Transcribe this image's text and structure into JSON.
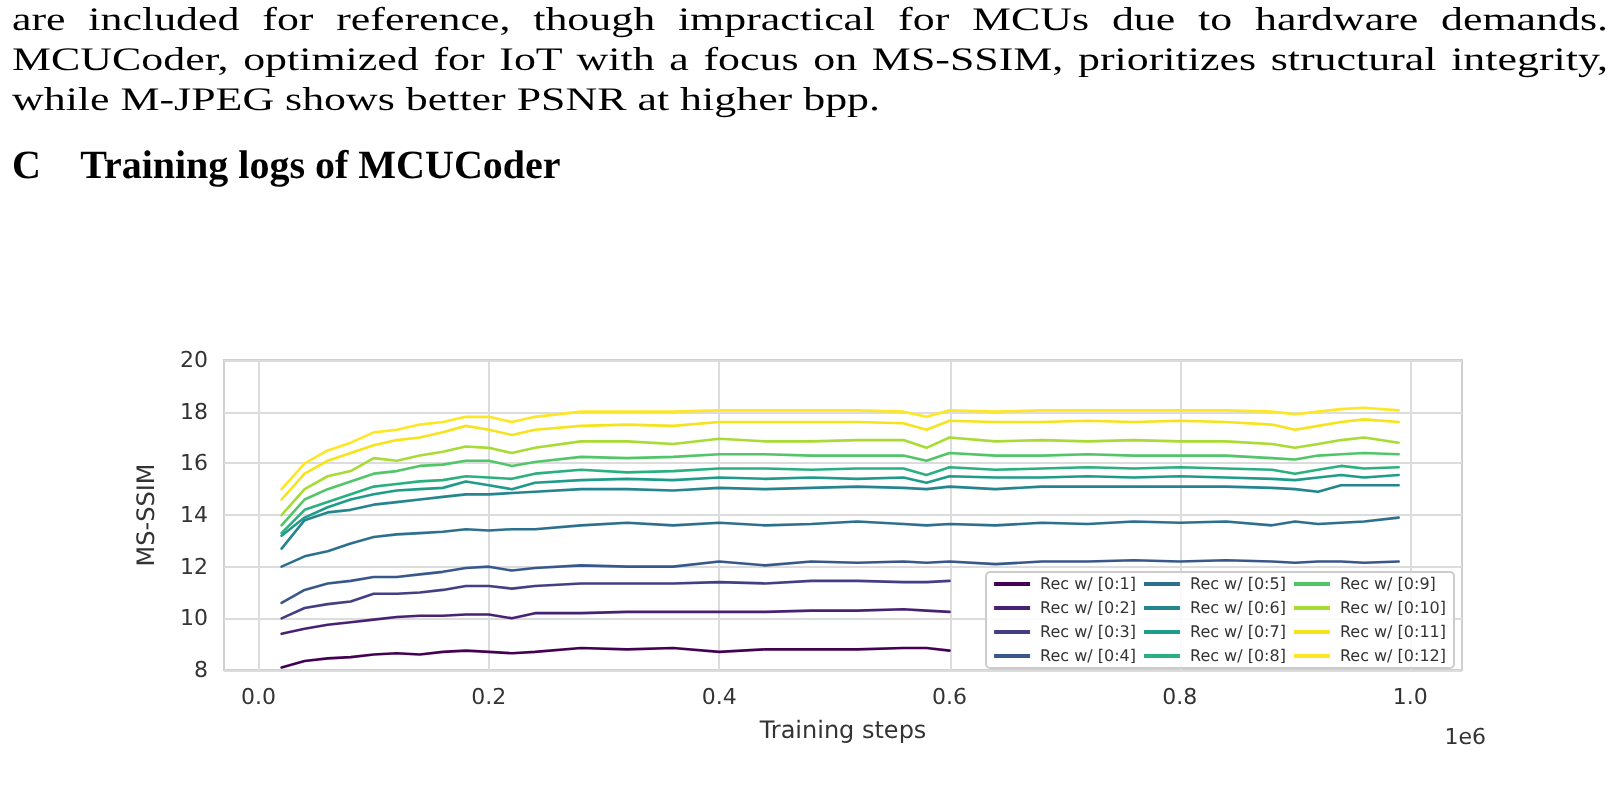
{
  "chart_data": {
    "type": "line",
    "title": "C    Training logs of MCUCoder",
    "annotations": [
      "are included for reference, though impractical for MCUs due to hardware demands. MCUCoder, optimized for IoT with a focus on MS-SSIM, prioritizes structural integrity, while M-JPEG shows better PSNR at higher bpp.",
      "1e6"
    ],
    "xlabel": "Training steps",
    "ylabel": "MS-SSIM",
    "x": [
      0.02,
      0.04,
      0.06,
      0.08,
      0.1,
      0.12,
      0.14,
      0.16,
      0.18,
      0.2,
      0.22,
      0.24,
      0.28,
      0.32,
      0.36,
      0.4,
      0.44,
      0.48,
      0.52,
      0.56,
      0.58,
      0.6,
      0.64,
      0.68,
      0.72,
      0.76,
      0.8,
      0.84,
      0.88,
      0.9,
      0.92,
      0.94,
      0.96,
      0.99
    ],
    "xlim": [
      -0.03,
      1.045
    ],
    "ylim": [
      8,
      20
    ],
    "xticks": [
      {
        "value": 0,
        "label": "0.0"
      },
      0.2,
      0.4,
      0.6,
      0.8,
      {
        "value": 1,
        "label": "1.0"
      }
    ],
    "yticks": [
      8,
      10,
      12,
      14,
      16,
      18,
      20
    ],
    "grid": true,
    "legend": "bottom right",
    "marker": "none",
    "line_style": "solid",
    "series": [
      {
        "name": "Rec w/ [0:1]",
        "color": "#440154",
        "values": [
          8.1,
          8.35,
          8.45,
          8.5,
          8.6,
          8.65,
          8.6,
          8.7,
          8.75,
          8.7,
          8.65,
          8.7,
          8.85,
          8.8,
          8.85,
          8.7,
          8.8,
          8.8,
          8.8,
          8.85,
          8.85,
          8.75,
          null,
          null,
          null,
          null,
          null,
          null,
          null,
          null,
          null,
          null,
          null,
          null
        ]
      },
      {
        "name": "Rec w/ [0:2]",
        "color": "#482173",
        "values": [
          9.4,
          9.6,
          9.75,
          9.85,
          9.95,
          10.05,
          10.1,
          10.1,
          10.15,
          10.15,
          10.0,
          10.2,
          10.2,
          10.25,
          10.25,
          10.25,
          10.25,
          10.3,
          10.3,
          10.35,
          10.3,
          10.25,
          null,
          null,
          null,
          null,
          null,
          null,
          null,
          null,
          null,
          null,
          null,
          null
        ]
      },
      {
        "name": "Rec w/ [0:3]",
        "color": "#433e85",
        "values": [
          10.0,
          10.4,
          10.55,
          10.65,
          10.95,
          10.95,
          11.0,
          11.1,
          11.25,
          11.25,
          11.15,
          11.25,
          11.35,
          11.35,
          11.35,
          11.4,
          11.35,
          11.45,
          11.45,
          11.4,
          11.4,
          11.45,
          null,
          null,
          null,
          null,
          null,
          null,
          null,
          null,
          null,
          null,
          null,
          null
        ]
      },
      {
        "name": "Rec w/ [0:4]",
        "color": "#38588c",
        "values": [
          10.6,
          11.1,
          11.35,
          11.45,
          11.6,
          11.6,
          11.7,
          11.8,
          11.95,
          12.0,
          11.85,
          11.95,
          12.05,
          12.0,
          12.0,
          12.2,
          12.05,
          12.2,
          12.15,
          12.2,
          12.15,
          12.2,
          12.1,
          12.2,
          12.2,
          12.25,
          12.2,
          12.25,
          12.2,
          12.15,
          12.2,
          12.2,
          12.15,
          12.2
        ]
      },
      {
        "name": "Rec w/ [0:5]",
        "color": "#2d708e",
        "values": [
          12.0,
          12.4,
          12.6,
          12.9,
          13.15,
          13.25,
          13.3,
          13.35,
          13.45,
          13.4,
          13.45,
          13.45,
          13.6,
          13.7,
          13.6,
          13.7,
          13.6,
          13.65,
          13.75,
          13.65,
          13.6,
          13.65,
          13.6,
          13.7,
          13.65,
          13.75,
          13.7,
          13.75,
          13.6,
          13.75,
          13.65,
          13.7,
          13.75,
          13.9
        ]
      },
      {
        "name": "Rec w/ [0:6]",
        "color": "#25858e",
        "values": [
          12.7,
          13.8,
          14.1,
          14.2,
          14.4,
          14.5,
          14.6,
          14.7,
          14.8,
          14.8,
          14.85,
          14.9,
          15.0,
          15.0,
          14.95,
          15.05,
          15.0,
          15.05,
          15.1,
          15.05,
          15.0,
          15.1,
          15.0,
          15.1,
          15.1,
          15.1,
          15.1,
          15.1,
          15.05,
          15.0,
          14.9,
          15.15,
          15.15,
          15.15
        ]
      },
      {
        "name": "Rec w/ [0:7]",
        "color": "#1e9b8a",
        "values": [
          13.2,
          13.9,
          14.3,
          14.6,
          14.8,
          14.95,
          15.0,
          15.05,
          15.3,
          15.15,
          15.0,
          15.25,
          15.35,
          15.4,
          15.35,
          15.45,
          15.4,
          15.45,
          15.4,
          15.45,
          15.25,
          15.5,
          15.45,
          15.45,
          15.5,
          15.45,
          15.5,
          15.45,
          15.4,
          15.35,
          15.45,
          15.55,
          15.45,
          15.55
        ]
      },
      {
        "name": "Rec w/ [0:8]",
        "color": "#2ab07f",
        "values": [
          13.3,
          14.2,
          14.5,
          14.8,
          15.1,
          15.2,
          15.3,
          15.35,
          15.5,
          15.45,
          15.4,
          15.6,
          15.75,
          15.65,
          15.7,
          15.8,
          15.8,
          15.75,
          15.8,
          15.8,
          15.55,
          15.85,
          15.75,
          15.8,
          15.85,
          15.8,
          15.85,
          15.8,
          15.75,
          15.6,
          15.75,
          15.9,
          15.8,
          15.85
        ]
      },
      {
        "name": "Rec w/ [0:9]",
        "color": "#52c569",
        "values": [
          13.6,
          14.6,
          15.0,
          15.3,
          15.6,
          15.7,
          15.9,
          15.95,
          16.1,
          16.1,
          15.9,
          16.05,
          16.25,
          16.2,
          16.25,
          16.35,
          16.35,
          16.3,
          16.3,
          16.3,
          16.1,
          16.4,
          16.3,
          16.3,
          16.35,
          16.3,
          16.3,
          16.3,
          16.2,
          16.15,
          16.3,
          16.35,
          16.4,
          16.35
        ]
      },
      {
        "name": "Rec w/ [0:10]",
        "color": "#a8db34",
        "values": [
          14.0,
          15.0,
          15.5,
          15.7,
          16.2,
          16.1,
          16.3,
          16.45,
          16.65,
          16.6,
          16.4,
          16.6,
          16.85,
          16.85,
          16.75,
          16.95,
          16.85,
          16.85,
          16.9,
          16.9,
          16.6,
          17.0,
          16.85,
          16.9,
          16.85,
          16.9,
          16.85,
          16.85,
          16.75,
          16.6,
          16.75,
          16.9,
          17.0,
          16.8
        ]
      },
      {
        "name": "Rec w/ [0:11]",
        "color": "#f5e31c",
        "values": [
          14.6,
          15.6,
          16.1,
          16.4,
          16.7,
          16.9,
          17.0,
          17.2,
          17.45,
          17.3,
          17.1,
          17.3,
          17.45,
          17.5,
          17.45,
          17.6,
          17.6,
          17.6,
          17.6,
          17.55,
          17.3,
          17.65,
          17.6,
          17.6,
          17.65,
          17.6,
          17.65,
          17.6,
          17.5,
          17.3,
          17.45,
          17.6,
          17.7,
          17.6
        ]
      },
      {
        "name": "Rec w/ [0:12]",
        "color": "#fde725",
        "values": [
          15.0,
          16.0,
          16.5,
          16.8,
          17.2,
          17.3,
          17.5,
          17.6,
          17.8,
          17.8,
          17.6,
          17.8,
          18.0,
          18.0,
          18.0,
          18.05,
          18.05,
          18.05,
          18.05,
          18.0,
          17.8,
          18.05,
          18.0,
          18.05,
          18.05,
          18.05,
          18.05,
          18.05,
          18.0,
          17.9,
          18.0,
          18.1,
          18.15,
          18.05
        ]
      }
    ]
  }
}
